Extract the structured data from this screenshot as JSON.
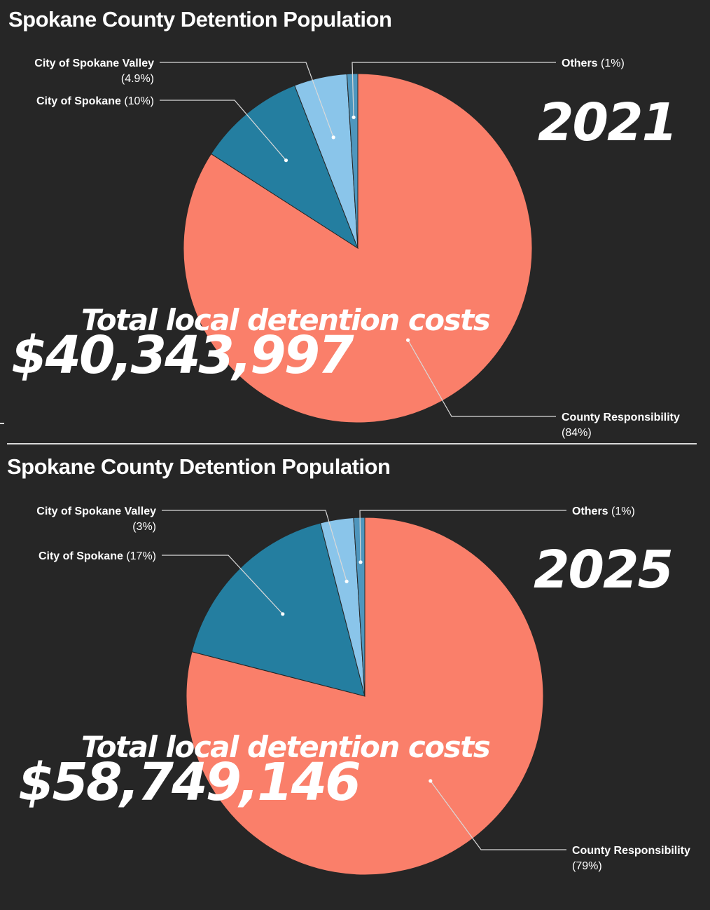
{
  "chart_data": [
    {
      "type": "pie",
      "title": "Spokane County Detention Population",
      "year": "2021",
      "total_caption": "Total local detention costs",
      "total_amount": "$40,343,997",
      "slices": [
        {
          "name": "County Responsibility",
          "pct_label": "(84%)",
          "value": 84,
          "color": "#fa7f6a"
        },
        {
          "name": "City of Spokane",
          "pct_label": "(10%)",
          "value": 10,
          "color": "#247ea0"
        },
        {
          "name": "City of Spokane Valley",
          "pct_label": "(4.9%)",
          "value": 4.9,
          "color": "#8ac5ea"
        },
        {
          "name": "Others",
          "pct_label": "(1%)",
          "value": 1,
          "color": "#4e96bd"
        }
      ]
    },
    {
      "type": "pie",
      "title": "Spokane County Detention Population",
      "year": "2025",
      "total_caption": "Total local detention costs",
      "total_amount": "$58,749,146",
      "slices": [
        {
          "name": "County Responsibility",
          "pct_label": "(79%)",
          "value": 79,
          "color": "#fa7f6a"
        },
        {
          "name": "City of Spokane",
          "pct_label": "(17%)",
          "value": 17,
          "color": "#247ea0"
        },
        {
          "name": "City of Spokane Valley",
          "pct_label": "(3%)",
          "value": 3,
          "color": "#8ac5ea"
        },
        {
          "name": "Others",
          "pct_label": "(1%)",
          "value": 1,
          "color": "#4e96bd"
        }
      ]
    }
  ]
}
